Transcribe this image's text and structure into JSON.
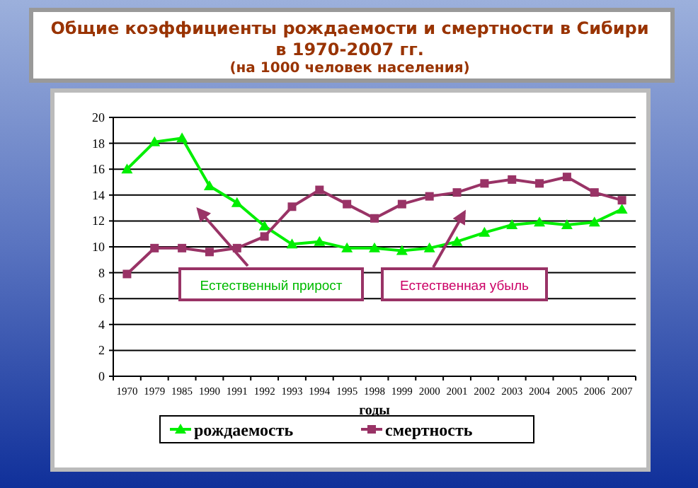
{
  "chart_data": {
    "type": "line",
    "title": "Общие коэффициенты рождаемости и смертности в Сибири в 1970-2007 гг.",
    "subtitle": "(на 1000 человек населения)",
    "xlabel": "годы",
    "categories": [
      "1970",
      "1979",
      "1985",
      "1990",
      "1991",
      "1992",
      "1993",
      "1994",
      "1995",
      "1998",
      "1999",
      "2000",
      "2001",
      "2002",
      "2003",
      "2004",
      "2005",
      "2006",
      "2007"
    ],
    "series": [
      {
        "name": "рождаемость",
        "color": "#00ee00",
        "marker": "triangle",
        "values": [
          16.0,
          18.1,
          18.4,
          14.7,
          13.4,
          11.6,
          10.2,
          10.4,
          9.9,
          9.9,
          9.7,
          9.9,
          10.4,
          11.1,
          11.7,
          11.9,
          11.7,
          11.9,
          12.9
        ]
      },
      {
        "name": "смертность",
        "color": "#993366",
        "marker": "square",
        "values": [
          7.9,
          9.9,
          9.9,
          9.6,
          9.9,
          10.8,
          13.1,
          14.4,
          13.3,
          12.2,
          13.3,
          13.9,
          14.2,
          14.9,
          15.2,
          14.9,
          15.4,
          14.2,
          13.6
        ]
      }
    ],
    "annotations": [
      "Естественный прирост",
      "Естественная убыль"
    ],
    "ylim": [
      0,
      20
    ],
    "yticks": [
      0,
      2,
      4,
      6,
      8,
      10,
      12,
      14,
      16,
      18,
      20
    ],
    "grid": "y",
    "legend": "bottom"
  }
}
